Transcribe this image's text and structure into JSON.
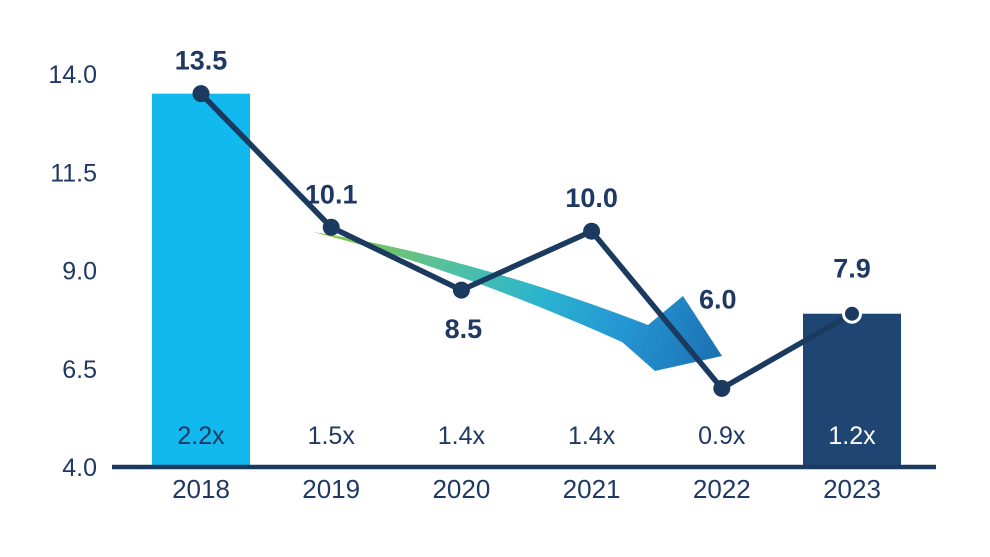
{
  "chart_data": {
    "type": "bar",
    "subtype": "bar-line-combo",
    "title": "",
    "xlabel": "",
    "ylabel": "",
    "categories": [
      "2018",
      "2019",
      "2020",
      "2021",
      "2022",
      "2023"
    ],
    "series": [
      {
        "name": "line-values",
        "type": "line",
        "values": [
          13.5,
          10.1,
          8.5,
          10.0,
          6.0,
          7.9
        ],
        "point_labels": [
          "13.5",
          "10.1",
          "8.5",
          "10.0",
          "6.0",
          "7.9"
        ]
      },
      {
        "name": "bars",
        "type": "bar",
        "values": [
          13.5,
          null,
          null,
          null,
          null,
          7.9
        ]
      },
      {
        "name": "multiples",
        "type": "text-row",
        "values": [
          "2.2x",
          "1.5x",
          "1.4x",
          "1.4x",
          "0.9x",
          "1.2x"
        ]
      }
    ],
    "yticks": [
      14.0,
      11.5,
      9.0,
      6.5,
      4.0
    ],
    "ytick_labels": [
      "14.0",
      "11.5",
      "9.0",
      "6.5",
      "4.0"
    ],
    "ylim": [
      4.0,
      14.0
    ],
    "grid": false,
    "legend": false,
    "annotations": [
      {
        "name": "downward-trend-arrow",
        "shape": "curved-swoosh-arrow",
        "from_category": "2019",
        "to_category": "2022",
        "gradient": [
          "#8FC73E",
          "#4EC0A6",
          "#2BB3CE",
          "#2597D4",
          "#1C70B1"
        ]
      }
    ],
    "colors": {
      "line": "#1B3A5F",
      "marker": "#1B3A5F",
      "marker_ring_2023": "#FFFFFF",
      "bar_2018": "#11B9EF",
      "bar_2023": "#1F4572",
      "axis": "#1B3A5F",
      "text": "#1F3864",
      "mult_label_on_dark_bar": "#FFFFFF",
      "background": "#FFFFFF"
    }
  }
}
